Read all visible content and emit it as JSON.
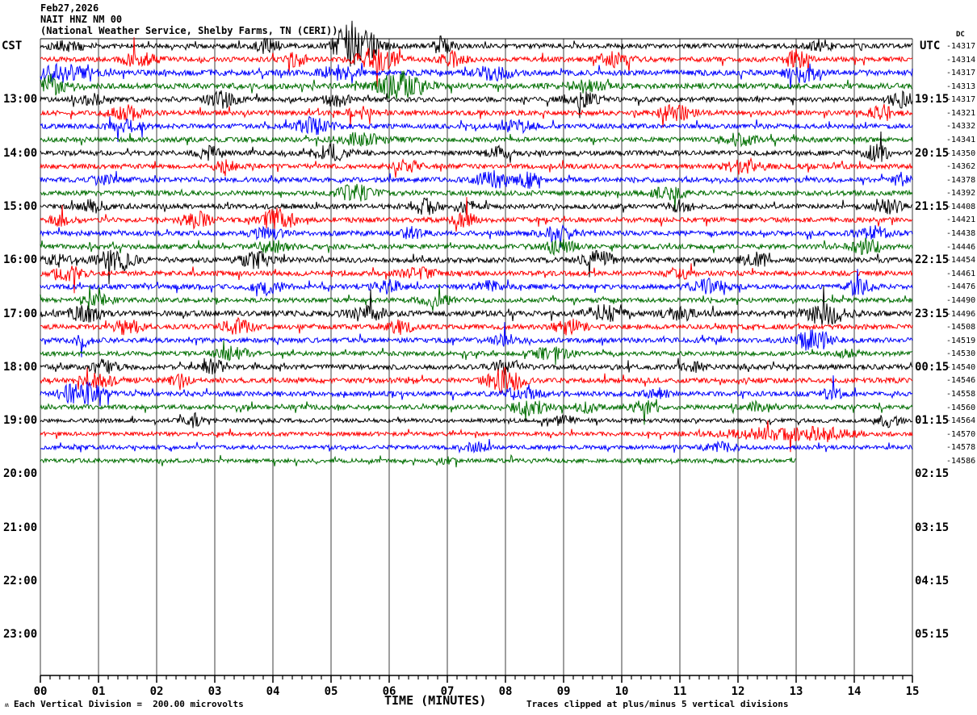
{
  "header": {
    "date": "Feb27,2026",
    "station": "NAIT HNZ NM 00",
    "description": "(National Weather Service, Shelby Farms, TN (CERI))"
  },
  "left_axis": {
    "timezone": "CST",
    "hour_labels": [
      {
        "row": 4,
        "text": "13:00"
      },
      {
        "row": 8,
        "text": "14:00"
      },
      {
        "row": 12,
        "text": "15:00"
      },
      {
        "row": 16,
        "text": "16:00"
      },
      {
        "row": 20,
        "text": "17:00"
      },
      {
        "row": 24,
        "text": "18:00"
      },
      {
        "row": 28,
        "text": "19:00"
      },
      {
        "row": 32,
        "text": "20:00"
      },
      {
        "row": 36,
        "text": "21:00"
      },
      {
        "row": 40,
        "text": "22:00"
      },
      {
        "row": 44,
        "text": "23:00"
      }
    ]
  },
  "right_axis": {
    "timezone": "UTC",
    "dc_header": "DC",
    "hour_labels": [
      {
        "row": 4,
        "text": "19:15"
      },
      {
        "row": 8,
        "text": "20:15"
      },
      {
        "row": 12,
        "text": "21:15"
      },
      {
        "row": 16,
        "text": "22:15"
      },
      {
        "row": 20,
        "text": "23:15"
      },
      {
        "row": 24,
        "text": "00:15"
      },
      {
        "row": 28,
        "text": "01:15"
      },
      {
        "row": 32,
        "text": "02:15"
      },
      {
        "row": 36,
        "text": "03:15"
      },
      {
        "row": 40,
        "text": "04:15"
      },
      {
        "row": 44,
        "text": "05:15"
      }
    ]
  },
  "x_axis": {
    "title": "TIME (MINUTES)",
    "tick_labels": [
      "00",
      "01",
      "02",
      "03",
      "04",
      "05",
      "06",
      "07",
      "08",
      "09",
      "10",
      "11",
      "12",
      "13",
      "14",
      "15"
    ]
  },
  "footer": {
    "squiggle_mark": "ʍ",
    "scale_note": "Each Vertical Division =  200.00 microvolts",
    "clip_note": "Traces clipped at plus/minus 5 vertical divisions"
  },
  "chart_data": {
    "type": "line",
    "subtype": "helicorder-seismogram",
    "title": "NAIT HNZ NM 00 helicorder record, Feb27,2026",
    "xlabel": "TIME (MINUTES)",
    "x_range_minutes": [
      0,
      15
    ],
    "minutes_per_row": 15,
    "grid": true,
    "grid_color": "#7f7f7f",
    "trace_colors": [
      "#000000",
      "#ff0000",
      "#0000ff",
      "#006e00"
    ],
    "rows": [
      {
        "dc": "-14317",
        "color": 0,
        "seed": 101,
        "base": 3.0,
        "end": 15,
        "bursts": [
          [
            5.3,
            22,
            0.25
          ],
          [
            5.6,
            14,
            0.3
          ],
          [
            3.9,
            8,
            0.2
          ],
          [
            6.9,
            10,
            0.15
          ],
          [
            0.5,
            6,
            0.3
          ],
          [
            13.4,
            7,
            0.2
          ]
        ]
      },
      {
        "dc": "-14314",
        "color": 1,
        "seed": 102,
        "base": 3.0,
        "end": 15,
        "bursts": [
          [
            1.7,
            8,
            0.3
          ],
          [
            5.8,
            14,
            0.35
          ],
          [
            7.1,
            9,
            0.2
          ],
          [
            4.4,
            7,
            0.2
          ],
          [
            9.9,
            8,
            0.25
          ],
          [
            13.0,
            10,
            0.2
          ]
        ]
      },
      {
        "dc": "-14317",
        "color": 2,
        "seed": 103,
        "base": 3.5,
        "end": 15,
        "bursts": [
          [
            0.3,
            10,
            0.5
          ],
          [
            5.1,
            7,
            0.3
          ],
          [
            7.8,
            9,
            0.3
          ],
          [
            13.1,
            11,
            0.25
          ]
        ]
      },
      {
        "dc": "-14313",
        "color": 3,
        "seed": 104,
        "base": 3.5,
        "end": 15,
        "bursts": [
          [
            0.2,
            12,
            0.2
          ],
          [
            6.2,
            16,
            0.4
          ],
          [
            9.4,
            6,
            0.3
          ]
        ]
      },
      {
        "dc": "-14317",
        "color": 0,
        "seed": 105,
        "base": 3.0,
        "end": 15,
        "bursts": [
          [
            0.9,
            6,
            0.2
          ],
          [
            3.1,
            9,
            0.25
          ],
          [
            5.1,
            8,
            0.2
          ],
          [
            9.3,
            8,
            0.3
          ],
          [
            14.8,
            9,
            0.2
          ]
        ]
      },
      {
        "dc": "-14321",
        "color": 1,
        "seed": 106,
        "base": 3.0,
        "end": 15,
        "bursts": [
          [
            1.5,
            8,
            0.3
          ],
          [
            5.5,
            6,
            0.2
          ],
          [
            10.9,
            9,
            0.3
          ],
          [
            14.5,
            8,
            0.2
          ]
        ]
      },
      {
        "dc": "-14332",
        "color": 2,
        "seed": 107,
        "base": 3.0,
        "end": 15,
        "bursts": [
          [
            1.5,
            7,
            0.25
          ],
          [
            4.7,
            10,
            0.3
          ],
          [
            8.2,
            6,
            0.3
          ]
        ]
      },
      {
        "dc": "-14341",
        "color": 3,
        "seed": 108,
        "base": 3.0,
        "end": 15,
        "bursts": [
          [
            5.5,
            7,
            0.4
          ],
          [
            12.0,
            6,
            0.3
          ]
        ]
      },
      {
        "dc": "-14350",
        "color": 0,
        "seed": 109,
        "base": 3.0,
        "end": 15,
        "bursts": [
          [
            2.9,
            7,
            0.2
          ],
          [
            5.0,
            9,
            0.3
          ],
          [
            7.9,
            6,
            0.2
          ],
          [
            14.4,
            10,
            0.2
          ]
        ]
      },
      {
        "dc": "-14362",
        "color": 1,
        "seed": 110,
        "base": 3.0,
        "end": 15,
        "bursts": [
          [
            3.2,
            6,
            0.2
          ],
          [
            6.3,
            6,
            0.25
          ],
          [
            12.1,
            8,
            0.3
          ]
        ]
      },
      {
        "dc": "-14378",
        "color": 2,
        "seed": 111,
        "base": 3.0,
        "end": 15,
        "bursts": [
          [
            1.1,
            6,
            0.2
          ],
          [
            7.8,
            10,
            0.3
          ],
          [
            8.4,
            8,
            0.2
          ],
          [
            14.8,
            7,
            0.15
          ]
        ]
      },
      {
        "dc": "-14392",
        "color": 3,
        "seed": 112,
        "base": 3.0,
        "end": 15,
        "bursts": [
          [
            5.4,
            9,
            0.3
          ],
          [
            10.8,
            6,
            0.3
          ]
        ]
      },
      {
        "dc": "-14408",
        "color": 0,
        "seed": 113,
        "base": 3.0,
        "end": 15,
        "bursts": [
          [
            0.9,
            8,
            0.2
          ],
          [
            6.6,
            9,
            0.25
          ],
          [
            7.3,
            7,
            0.2
          ],
          [
            11.0,
            6,
            0.2
          ],
          [
            14.6,
            9,
            0.2
          ]
        ]
      },
      {
        "dc": "-14421",
        "color": 1,
        "seed": 114,
        "base": 3.0,
        "end": 15,
        "bursts": [
          [
            0.4,
            7,
            0.2
          ],
          [
            2.7,
            9,
            0.25
          ],
          [
            4.1,
            13,
            0.3
          ],
          [
            7.3,
            8,
            0.2
          ]
        ]
      },
      {
        "dc": "-14438",
        "color": 2,
        "seed": 115,
        "base": 3.0,
        "end": 15,
        "bursts": [
          [
            3.9,
            7,
            0.25
          ],
          [
            6.4,
            6,
            0.2
          ],
          [
            8.9,
            9,
            0.3
          ],
          [
            14.3,
            9,
            0.25
          ]
        ]
      },
      {
        "dc": "-14446",
        "color": 3,
        "seed": 116,
        "base": 3.0,
        "end": 15,
        "bursts": [
          [
            4.0,
            6,
            0.3
          ],
          [
            8.9,
            8,
            0.3
          ],
          [
            14.2,
            8,
            0.25
          ]
        ]
      },
      {
        "dc": "-14454",
        "color": 0,
        "seed": 117,
        "base": 3.2,
        "end": 15,
        "bursts": [
          [
            0.3,
            7,
            0.2
          ],
          [
            1.3,
            11,
            0.35
          ],
          [
            3.7,
            9,
            0.25
          ],
          [
            9.6,
            9,
            0.3
          ],
          [
            12.3,
            8,
            0.25
          ]
        ]
      },
      {
        "dc": "-14461",
        "color": 1,
        "seed": 118,
        "base": 3.0,
        "end": 15,
        "bursts": [
          [
            0.5,
            7,
            0.25
          ],
          [
            6.5,
            6,
            0.3
          ],
          [
            11.0,
            6,
            0.2
          ]
        ]
      },
      {
        "dc": "-14476",
        "color": 2,
        "seed": 119,
        "base": 3.0,
        "end": 15,
        "bursts": [
          [
            3.9,
            8,
            0.25
          ],
          [
            6.0,
            7,
            0.25
          ],
          [
            7.7,
            6,
            0.2
          ],
          [
            11.5,
            8,
            0.3
          ],
          [
            14.1,
            9,
            0.2
          ]
        ]
      },
      {
        "dc": "-14490",
        "color": 3,
        "seed": 120,
        "base": 2.8,
        "end": 15,
        "bursts": [
          [
            1.0,
            6,
            0.3
          ],
          [
            6.8,
            5,
            0.3
          ]
        ]
      },
      {
        "dc": "-14496",
        "color": 0,
        "seed": 121,
        "base": 3.5,
        "end": 15,
        "bursts": [
          [
            0.8,
            9,
            0.3
          ],
          [
            5.6,
            8,
            0.3
          ],
          [
            9.7,
            9,
            0.3
          ],
          [
            11.0,
            7,
            0.25
          ],
          [
            13.5,
            12,
            0.35
          ]
        ]
      },
      {
        "dc": "-14508",
        "color": 1,
        "seed": 122,
        "base": 3.0,
        "end": 15,
        "bursts": [
          [
            1.5,
            8,
            0.25
          ],
          [
            3.4,
            9,
            0.25
          ],
          [
            6.2,
            8,
            0.2
          ],
          [
            9.1,
            8,
            0.25
          ]
        ]
      },
      {
        "dc": "-14519",
        "color": 2,
        "seed": 123,
        "base": 3.0,
        "end": 15,
        "bursts": [
          [
            0.7,
            6,
            0.2
          ],
          [
            8.0,
            6,
            0.25
          ],
          [
            13.3,
            12,
            0.3
          ]
        ]
      },
      {
        "dc": "-14530",
        "color": 3,
        "seed": 124,
        "base": 2.8,
        "end": 15,
        "bursts": [
          [
            3.3,
            7,
            0.3
          ],
          [
            8.8,
            7,
            0.3
          ],
          [
            13.9,
            5,
            0.2
          ]
        ]
      },
      {
        "dc": "-14540",
        "color": 0,
        "seed": 125,
        "base": 3.0,
        "end": 15,
        "bursts": [
          [
            1.1,
            8,
            0.25
          ],
          [
            3.0,
            9,
            0.2
          ],
          [
            8.0,
            7,
            0.25
          ],
          [
            11.2,
            6,
            0.2
          ]
        ]
      },
      {
        "dc": "-14546",
        "color": 1,
        "seed": 126,
        "base": 3.2,
        "end": 15,
        "bursts": [
          [
            1.0,
            7,
            0.3
          ],
          [
            2.4,
            9,
            0.15
          ],
          [
            8.0,
            14,
            0.3
          ]
        ]
      },
      {
        "dc": "-14558",
        "color": 2,
        "seed": 127,
        "base": 3.0,
        "end": 15,
        "bursts": [
          [
            0.7,
            13,
            0.35
          ],
          [
            8.3,
            7,
            0.3
          ],
          [
            10.6,
            6,
            0.2
          ],
          [
            13.6,
            6,
            0.2
          ]
        ]
      },
      {
        "dc": "-14560",
        "color": 3,
        "seed": 128,
        "base": 2.8,
        "end": 15,
        "bursts": [
          [
            8.4,
            9,
            0.3
          ],
          [
            9.4,
            6,
            0.2
          ],
          [
            10.4,
            7,
            0.25
          ],
          [
            12.4,
            6,
            0.25
          ]
        ]
      },
      {
        "dc": "-14564",
        "color": 0,
        "seed": 129,
        "base": 2.5,
        "end": 15,
        "bursts": [
          [
            2.6,
            9,
            0.15
          ],
          [
            9.0,
            6,
            0.2
          ],
          [
            14.6,
            7,
            0.2
          ]
        ]
      },
      {
        "dc": "-14570",
        "color": 1,
        "seed": 130,
        "base": 2.5,
        "end": 15,
        "bursts": [
          [
            12.5,
            6,
            0.8
          ],
          [
            13.5,
            6,
            0.5
          ]
        ]
      },
      {
        "dc": "-14578",
        "color": 2,
        "seed": 131,
        "base": 2.5,
        "end": 15,
        "bursts": [
          [
            7.5,
            5,
            0.2
          ],
          [
            11.7,
            5,
            0.3
          ]
        ]
      },
      {
        "dc": "-14586",
        "color": 3,
        "seed": 132,
        "base": 2.5,
        "end": 13,
        "bursts": [
          [
            7.0,
            5,
            0.1
          ]
        ]
      }
    ]
  }
}
